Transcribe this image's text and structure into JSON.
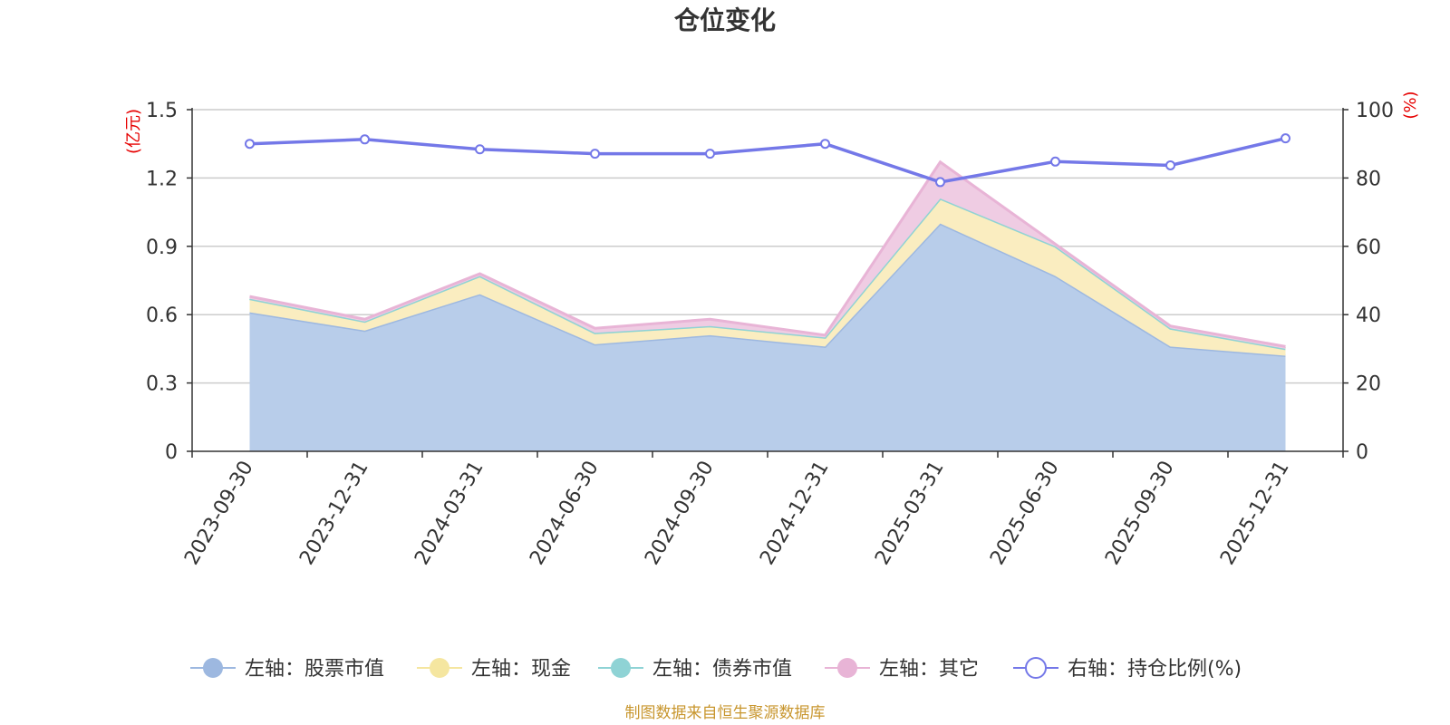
{
  "chart_data": {
    "type": "area",
    "title": "仓位变化",
    "categories": [
      "2023-09-30",
      "2023-12-31",
      "2024-03-31",
      "2024-06-30",
      "2024-09-30",
      "2024-12-31",
      "2025-03-31",
      "2025-06-30",
      "2025-09-30",
      "2025-12-31"
    ],
    "left_axis": {
      "unit": "(亿元)",
      "ylim": [
        0,
        1.5
      ],
      "ticks": [
        "0",
        "0.3",
        "0.6",
        "0.9",
        "1.2",
        "1.5"
      ]
    },
    "right_axis": {
      "unit": "(%)",
      "ylim": [
        0,
        100
      ],
      "ticks": [
        "0",
        "20",
        "40",
        "60",
        "80",
        "100"
      ]
    },
    "series": [
      {
        "name": "左轴：股票市值",
        "axis": "left",
        "stack": true,
        "color": "#9db8e0",
        "fill": "#b8cdea",
        "values": [
          0.61,
          0.53,
          0.69,
          0.47,
          0.51,
          0.46,
          1.0,
          0.77,
          0.46,
          0.42
        ]
      },
      {
        "name": "左轴：现金",
        "axis": "left",
        "stack": true,
        "color": "#f5e6a0",
        "fill": "#faedc0",
        "values": [
          0.06,
          0.04,
          0.08,
          0.05,
          0.04,
          0.04,
          0.11,
          0.13,
          0.08,
          0.03
        ]
      },
      {
        "name": "左轴：债券市值",
        "axis": "left",
        "stack": true,
        "color": "#8fd3d5",
        "fill": "#a8dfe0",
        "values": [
          0,
          0,
          0,
          0,
          0,
          0,
          0,
          0,
          0,
          0
        ]
      },
      {
        "name": "左轴：其它",
        "axis": "left",
        "stack": true,
        "color": "#e8b4d6",
        "fill": "#efcce3",
        "values": [
          0.01,
          0.01,
          0.01,
          0.02,
          0.03,
          0.01,
          0.16,
          0.01,
          0.01,
          0.01
        ]
      },
      {
        "name": "右轴：持仓比例(%)",
        "axis": "right",
        "type": "line",
        "color": "#7478e8",
        "values": [
          90,
          91.3,
          88.4,
          87.1,
          87.1,
          90.0,
          78.8,
          84.8,
          83.7,
          91.6
        ]
      }
    ],
    "source": "制图数据来自恒生聚源数据库"
  }
}
